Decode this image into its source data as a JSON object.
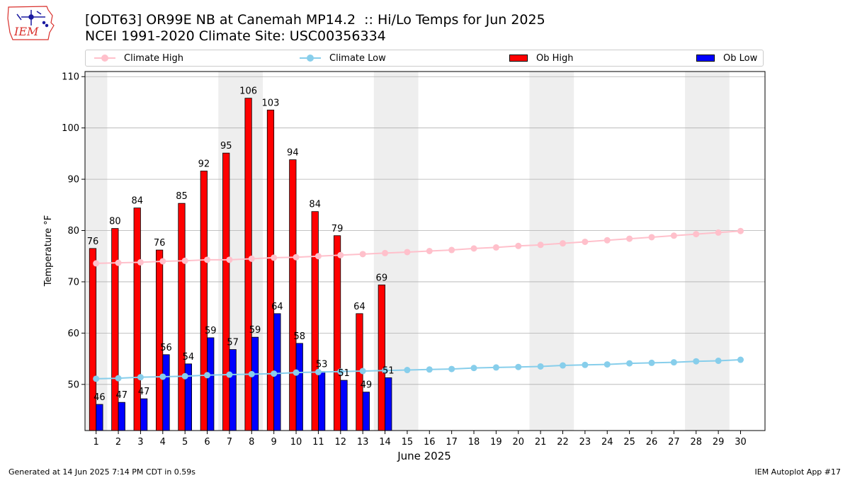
{
  "header": {
    "title_line1": "[ODT63] OR99E NB at Canemah MP14.2  :: Hi/Lo Temps for Jun 2025",
    "title_line2": "NCEI 1991-2020 Climate Site: USC00356334"
  },
  "logo": {
    "text": "IEM",
    "color": "#d9302c"
  },
  "legend": {
    "climate_high": "Climate High",
    "climate_low": "Climate Low",
    "ob_high": "Ob High",
    "ob_low": "Ob Low"
  },
  "footer": {
    "generated": "Generated at 14 Jun 2025 7:14 PM CDT in 0.59s",
    "app": "IEM Autoplot App #17"
  },
  "colors": {
    "ob_high": "#ff0000",
    "ob_low": "#0000ff",
    "climate_high": "#ffc0cb",
    "climate_low": "#87ceeb",
    "weekend_shade": "#eeeeee",
    "grid": "#b0b0b0"
  },
  "chart_data": {
    "type": "bar",
    "xlabel": "June 2025",
    "ylabel": "Temperature °F",
    "ylim": [
      41,
      111
    ],
    "yticks": [
      50,
      60,
      70,
      80,
      90,
      100,
      110
    ],
    "grid": "horizontal",
    "legend_position": "top",
    "days": [
      1,
      2,
      3,
      4,
      5,
      6,
      7,
      8,
      9,
      10,
      11,
      12,
      13,
      14,
      15,
      16,
      17,
      18,
      19,
      20,
      21,
      22,
      23,
      24,
      25,
      26,
      27,
      28,
      29,
      30
    ],
    "weekend_shaded_ranges": [
      [
        1,
        1
      ],
      [
        7,
        8
      ],
      [
        14,
        15
      ],
      [
        21,
        22
      ],
      [
        28,
        29
      ]
    ],
    "series": [
      {
        "name": "Ob High",
        "kind": "bar",
        "values": [
          76.5,
          80.4,
          84.4,
          76.2,
          85.3,
          91.6,
          95.1,
          105.8,
          103.5,
          93.8,
          83.7,
          79.0,
          63.8,
          69.4
        ]
      },
      {
        "name": "Ob Low",
        "kind": "bar",
        "values": [
          46.1,
          46.5,
          47.2,
          55.8,
          54.0,
          59.1,
          56.8,
          59.2,
          63.8,
          58.0,
          52.5,
          50.8,
          48.5,
          51.3
        ]
      },
      {
        "name": "Climate High",
        "kind": "line",
        "values": [
          73.6,
          73.7,
          73.8,
          74.0,
          74.1,
          74.3,
          74.3,
          74.5,
          74.7,
          74.8,
          75.0,
          75.2,
          75.4,
          75.6,
          75.8,
          76.0,
          76.2,
          76.5,
          76.7,
          77.0,
          77.2,
          77.5,
          77.8,
          78.1,
          78.4,
          78.7,
          79.0,
          79.3,
          79.6,
          79.9
        ]
      },
      {
        "name": "Climate Low",
        "kind": "line",
        "values": [
          51.1,
          51.2,
          51.4,
          51.5,
          51.6,
          51.8,
          51.9,
          52.0,
          52.1,
          52.3,
          52.4,
          52.5,
          52.6,
          52.7,
          52.8,
          52.9,
          53.0,
          53.2,
          53.3,
          53.4,
          53.5,
          53.7,
          53.8,
          53.9,
          54.1,
          54.2,
          54.3,
          54.5,
          54.6,
          54.8
        ]
      }
    ],
    "bar_labels_high": [
      "76",
      "80",
      "84",
      "76",
      "85",
      "92",
      "95",
      "106",
      "103",
      "94",
      "84",
      "79",
      "64",
      "69"
    ],
    "bar_labels_low": [
      "46",
      "47",
      "47",
      "56",
      "54",
      "59",
      "57",
      "59",
      "64",
      "58",
      "53",
      "51",
      "49",
      "51"
    ]
  }
}
